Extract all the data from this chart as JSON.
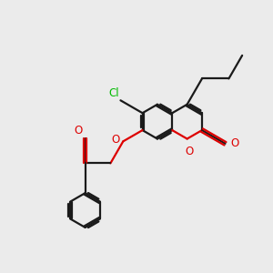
{
  "background_color": "#ebebeb",
  "bond_color": "#1a1a1a",
  "oxygen_color": "#dd0000",
  "chlorine_color": "#00bb00",
  "line_width": 1.6,
  "dbo": 0.055,
  "figsize": [
    3.0,
    3.0
  ],
  "dpi": 100,
  "xlim": [
    0.0,
    9.0
  ],
  "ylim": [
    0.5,
    9.5
  ]
}
